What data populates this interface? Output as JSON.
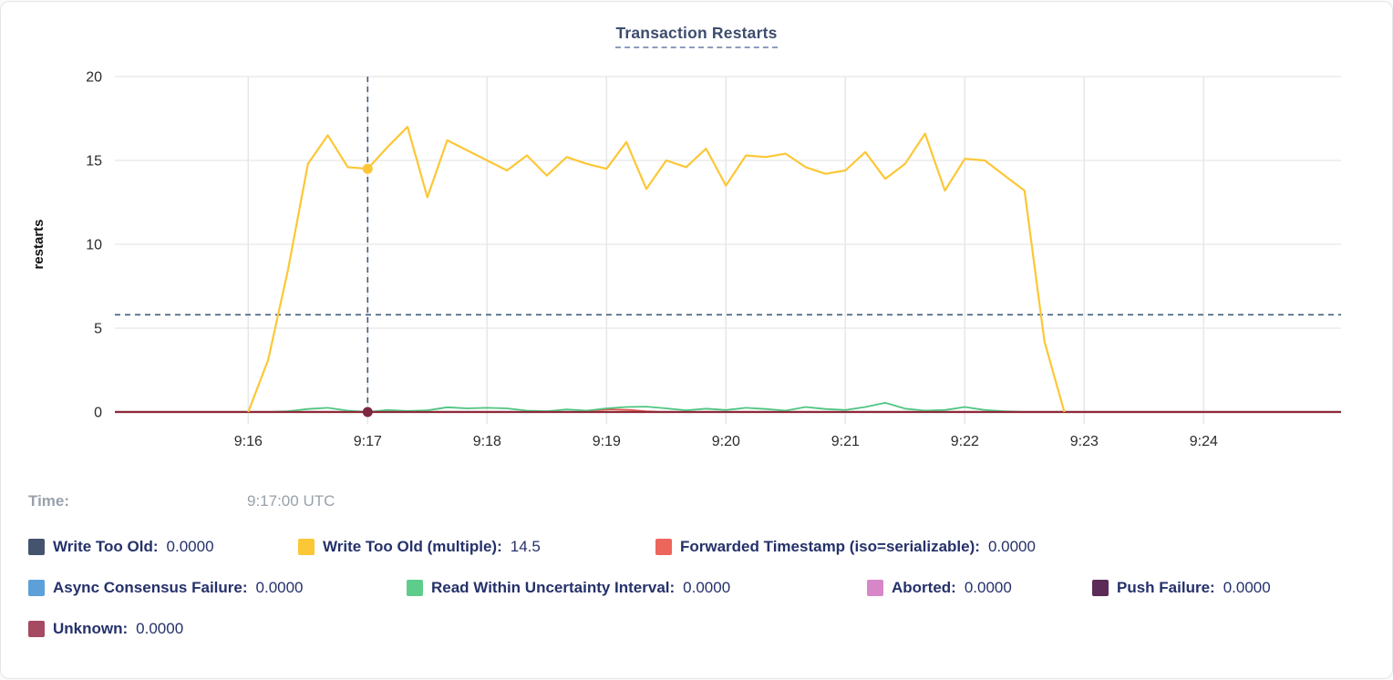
{
  "panel": {
    "background": "#ffffff",
    "border_color": "#e3e5e9"
  },
  "chart_data": {
    "type": "line",
    "title": "Transaction Restarts",
    "ylabel": "restarts",
    "xlabel": "",
    "ylim": [
      0,
      20
    ],
    "y_ticks": [
      0,
      5,
      10,
      15,
      20
    ],
    "grid": true,
    "legend_position": "bottom",
    "x_domain_seconds_after_9am": [
      893,
      1509
    ],
    "x_ticks": [
      {
        "sec": 960,
        "label": "9:16"
      },
      {
        "sec": 1020,
        "label": "9:17"
      },
      {
        "sec": 1080,
        "label": "9:18"
      },
      {
        "sec": 1140,
        "label": "9:19"
      },
      {
        "sec": 1200,
        "label": "9:20"
      },
      {
        "sec": 1260,
        "label": "9:21"
      },
      {
        "sec": 1320,
        "label": "9:22"
      },
      {
        "sec": 1380,
        "label": "9:23"
      },
      {
        "sec": 1440,
        "label": "9:24"
      }
    ],
    "hover": {
      "time_label": "Time:",
      "time_value": "9:17:00 UTC",
      "sec": 1020,
      "hline_value": 5.8,
      "crosshair_color": "#3f5d7a",
      "dots": [
        {
          "series": "Write Too Old (multiple)",
          "value": 14.5,
          "dot_color": "#fcc736"
        },
        {
          "series": "Unknown",
          "value": 0,
          "dot_color": "#7e2740"
        }
      ]
    },
    "series": [
      {
        "name": "Write Too Old",
        "color": "#44536e",
        "line_color": "#44536e",
        "value_at_cursor": "0.0000",
        "points": [
          [
            893,
            0
          ],
          [
            1509,
            0
          ]
        ]
      },
      {
        "name": "Write Too Old (multiple)",
        "color": "#fcc736",
        "line_color": "#fcc736",
        "value_at_cursor": "14.5",
        "points": [
          [
            960,
            0
          ],
          [
            970,
            3.1
          ],
          [
            980,
            8.5
          ],
          [
            990,
            14.8
          ],
          [
            1000,
            16.5
          ],
          [
            1010,
            14.6
          ],
          [
            1020,
            14.5
          ],
          [
            1030,
            15.8
          ],
          [
            1040,
            17.0
          ],
          [
            1050,
            12.8
          ],
          [
            1060,
            16.2
          ],
          [
            1070,
            15.6
          ],
          [
            1080,
            15.0
          ],
          [
            1090,
            14.4
          ],
          [
            1100,
            15.3
          ],
          [
            1110,
            14.1
          ],
          [
            1120,
            15.2
          ],
          [
            1130,
            14.8
          ],
          [
            1140,
            14.5
          ],
          [
            1150,
            16.1
          ],
          [
            1160,
            13.3
          ],
          [
            1170,
            15.0
          ],
          [
            1180,
            14.6
          ],
          [
            1190,
            15.7
          ],
          [
            1200,
            13.5
          ],
          [
            1210,
            15.3
          ],
          [
            1220,
            15.2
          ],
          [
            1230,
            15.4
          ],
          [
            1240,
            14.6
          ],
          [
            1250,
            14.2
          ],
          [
            1260,
            14.4
          ],
          [
            1270,
            15.5
          ],
          [
            1280,
            13.9
          ],
          [
            1290,
            14.8
          ],
          [
            1300,
            16.6
          ],
          [
            1310,
            13.2
          ],
          [
            1320,
            15.1
          ],
          [
            1330,
            15.0
          ],
          [
            1340,
            14.1
          ],
          [
            1350,
            13.2
          ],
          [
            1360,
            4.2
          ],
          [
            1370,
            0
          ]
        ]
      },
      {
        "name": "Forwarded Timestamp (iso=serializable)",
        "color": "#ed665c",
        "line_color": "#e4554d",
        "value_at_cursor": "0.0000",
        "points": [
          [
            893,
            0
          ],
          [
            1125,
            0
          ],
          [
            1133,
            0.1
          ],
          [
            1142,
            0.16
          ],
          [
            1152,
            0.12
          ],
          [
            1160,
            0.04
          ],
          [
            1168,
            0
          ],
          [
            1509,
            0
          ]
        ]
      },
      {
        "name": "Async Consensus Failure",
        "color": "#5da0d9",
        "line_color": "#5da0d9",
        "value_at_cursor": "0.0000",
        "points": [
          [
            893,
            0
          ],
          [
            1509,
            0
          ]
        ]
      },
      {
        "name": "Read Within Uncertainty Interval",
        "color": "#5ecd8b",
        "line_color": "#50c581",
        "value_at_cursor": "0.0000",
        "points": [
          [
            960,
            0
          ],
          [
            970,
            0
          ],
          [
            980,
            0.05
          ],
          [
            990,
            0.18
          ],
          [
            1000,
            0.25
          ],
          [
            1010,
            0.08
          ],
          [
            1020,
            0
          ],
          [
            1030,
            0.12
          ],
          [
            1040,
            0.06
          ],
          [
            1050,
            0.1
          ],
          [
            1060,
            0.28
          ],
          [
            1070,
            0.22
          ],
          [
            1080,
            0.25
          ],
          [
            1090,
            0.22
          ],
          [
            1100,
            0.08
          ],
          [
            1110,
            0.05
          ],
          [
            1120,
            0.15
          ],
          [
            1130,
            0.08
          ],
          [
            1140,
            0.22
          ],
          [
            1150,
            0.3
          ],
          [
            1160,
            0.32
          ],
          [
            1170,
            0.22
          ],
          [
            1180,
            0.1
          ],
          [
            1190,
            0.2
          ],
          [
            1200,
            0.12
          ],
          [
            1210,
            0.25
          ],
          [
            1220,
            0.18
          ],
          [
            1230,
            0.08
          ],
          [
            1240,
            0.3
          ],
          [
            1250,
            0.18
          ],
          [
            1260,
            0.12
          ],
          [
            1270,
            0.3
          ],
          [
            1280,
            0.55
          ],
          [
            1290,
            0.2
          ],
          [
            1300,
            0.08
          ],
          [
            1310,
            0.12
          ],
          [
            1320,
            0.3
          ],
          [
            1330,
            0.12
          ],
          [
            1340,
            0.04
          ],
          [
            1350,
            0
          ],
          [
            1360,
            0
          ]
        ]
      },
      {
        "name": "Aborted",
        "color": "#d787c8",
        "line_color": "#d787c8",
        "value_at_cursor": "0.0000",
        "points": [
          [
            893,
            0
          ],
          [
            1509,
            0
          ]
        ]
      },
      {
        "name": "Push Failure",
        "color": "#5c2b56",
        "line_color": "#5c2b56",
        "value_at_cursor": "0.0000",
        "points": [
          [
            893,
            0
          ],
          [
            1509,
            0
          ]
        ]
      },
      {
        "name": "Unknown",
        "color": "#a54a60",
        "line_color": "#8e2a3a",
        "value_at_cursor": "0.0000",
        "points": [
          [
            893,
            0
          ],
          [
            1509,
            0
          ]
        ]
      }
    ],
    "legend_rows": [
      [
        0,
        1,
        2
      ],
      [
        3,
        4,
        5,
        6
      ],
      [
        7
      ]
    ]
  }
}
